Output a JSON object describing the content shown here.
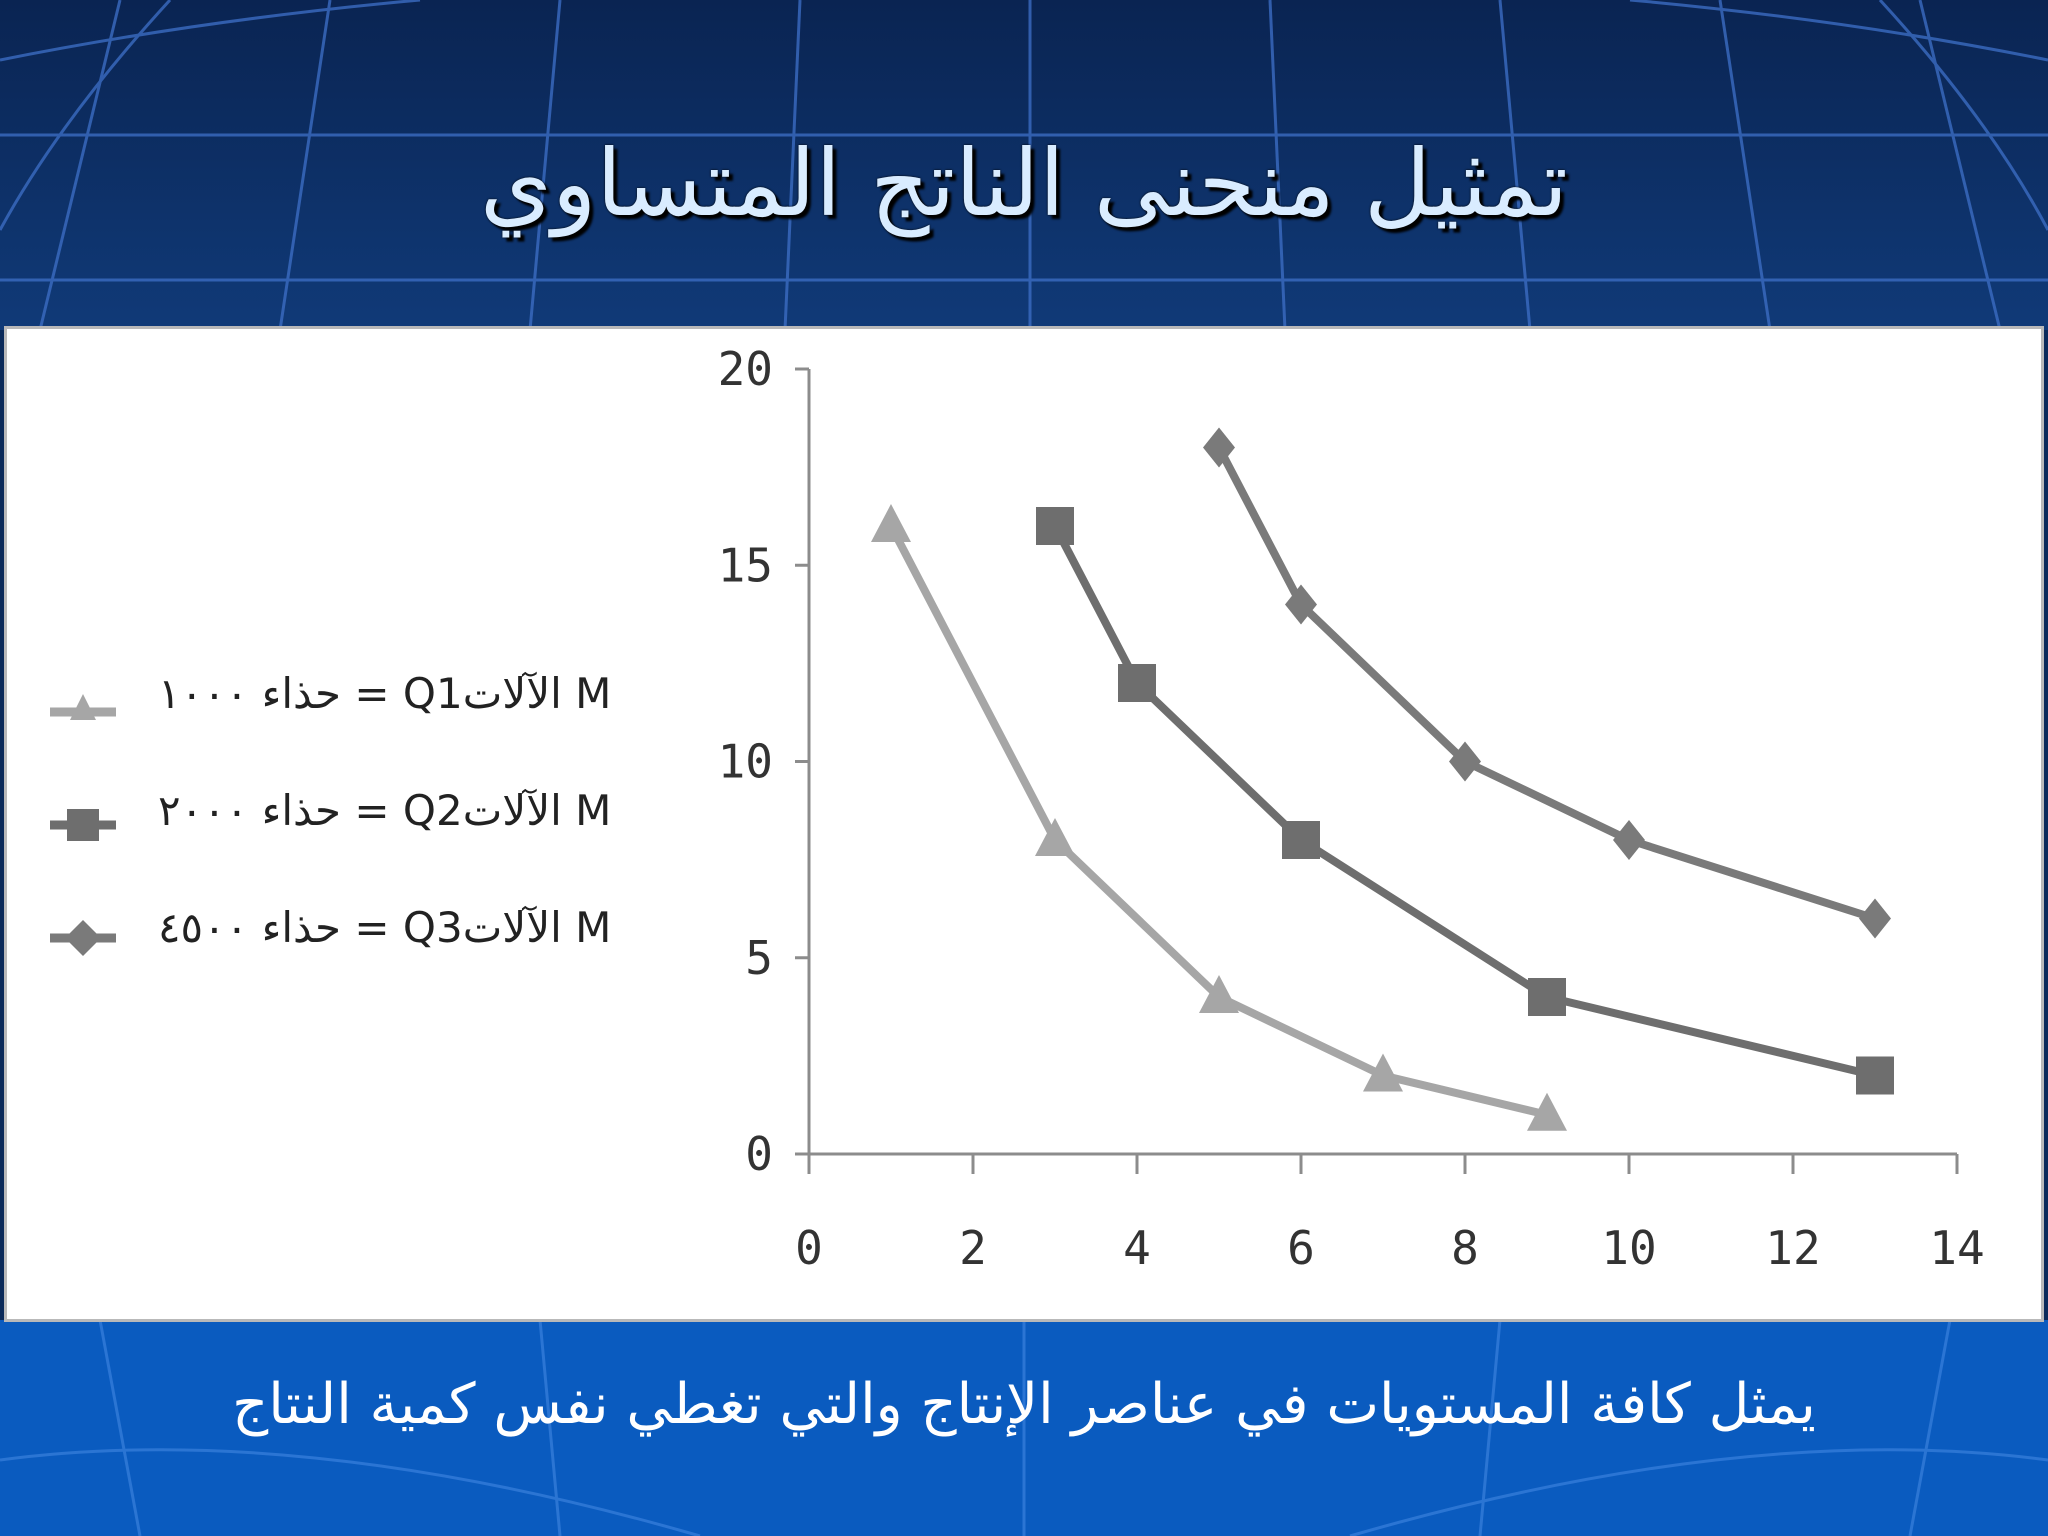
{
  "slide": {
    "title": "تمثيل منحنى الناتج المتساوي",
    "caption": "يمثل كافة المستويات في عناصر الإنتاج والتي تغطي نفس كمية النتاج"
  },
  "colors": {
    "top_background": "#0b2a5a",
    "bottom_band": "#0a5bbf",
    "grid_lines": "#2f63b8",
    "series_q1": "#a6a6a6",
    "series_q2": "#6e6e6e",
    "series_q3": "#7a7a7a",
    "axis": "#8c8c8c"
  },
  "chart_data": {
    "type": "line",
    "title": "",
    "xlabel": "",
    "ylabel": "",
    "xlim": [
      0,
      14
    ],
    "ylim": [
      0,
      20
    ],
    "xticks": [
      "0",
      "2",
      "4",
      "6",
      "8",
      "10",
      "12",
      "14"
    ],
    "yticks": [
      "0",
      "5",
      "10",
      "15",
      "20"
    ],
    "grid": false,
    "legend_position": "left",
    "series": [
      {
        "name": "حذاء ١٠٠٠ = Q1الآلات M",
        "marker": "triangle",
        "color": "#a6a6a6",
        "points": [
          [
            1,
            16
          ],
          [
            3,
            8
          ],
          [
            5,
            4
          ],
          [
            7,
            2
          ],
          [
            9,
            1
          ]
        ]
      },
      {
        "name": "حذاء ٢٠٠٠ = Q2الآلات M",
        "marker": "square",
        "color": "#6e6e6e",
        "points": [
          [
            3,
            16
          ],
          [
            4,
            12
          ],
          [
            6,
            8
          ],
          [
            9,
            4
          ],
          [
            13,
            2
          ]
        ]
      },
      {
        "name": "حذاء ٤٥٠٠ = Q3الآلات M",
        "marker": "diamond",
        "color": "#7a7a7a",
        "points": [
          [
            5,
            18
          ],
          [
            6,
            14
          ],
          [
            8,
            10
          ],
          [
            10,
            8
          ],
          [
            13,
            6
          ]
        ]
      }
    ]
  }
}
